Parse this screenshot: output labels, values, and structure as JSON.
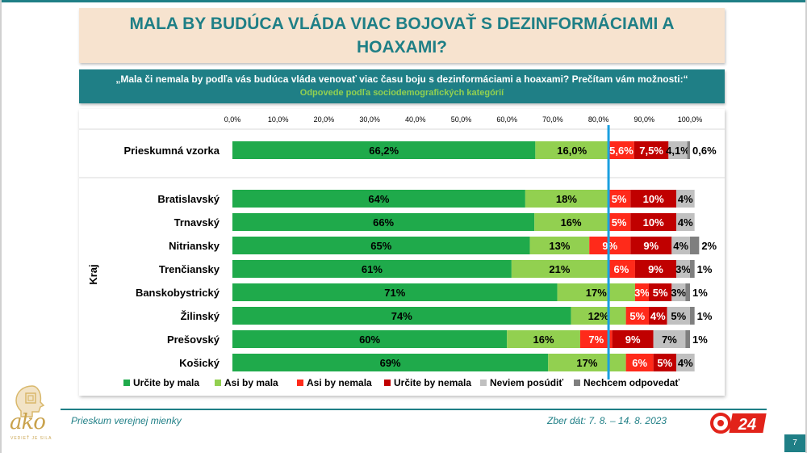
{
  "header": {
    "title": "MALA BY BUDÚCA VLÁDA VIAC BOJOVAŤ S DEZINFORMÁCIAMI A HOAXAMI?",
    "question": "„Mala či nemala by podľa vás budúca vláda venovať viac času boju s dezinformáciami a hoaxami? Prečítam vám možnosti:“",
    "subtitle": "Odpovede podľa sociodemografických kategórií"
  },
  "chart_data": {
    "type": "bar",
    "orientation": "horizontal",
    "stacked": true,
    "x_ticks": [
      "0,0%",
      "10,0%",
      "20,0%",
      "30,0%",
      "40,0%",
      "50,0%",
      "60,0%",
      "70,0%",
      "80,0%",
      "90,0%",
      "100,0%"
    ],
    "xlim": [
      0,
      100
    ],
    "reference_line": 82.2,
    "group_label": "Kraj",
    "categories": [
      "Prieskumná vzorka",
      "Bratislavský",
      "Trnavský",
      "Nitriansky",
      "Trenčiansky",
      "Banskobystrický",
      "Žilinský",
      "Prešovský",
      "Košický"
    ],
    "series": [
      {
        "name": "Určite by mala",
        "color": "#1faa4b",
        "values": [
          66.2,
          64,
          66,
          65,
          61,
          71,
          74,
          60,
          69
        ],
        "labels": [
          "66,2%",
          "64%",
          "66%",
          "65%",
          "61%",
          "71%",
          "74%",
          "60%",
          "69%"
        ]
      },
      {
        "name": "Asi by mala",
        "color": "#92d050",
        "values": [
          16.0,
          18,
          16,
          13,
          21,
          17,
          12,
          16,
          17
        ],
        "labels": [
          "16,0%",
          "18%",
          "16%",
          "13%",
          "21%",
          "17%",
          "12%",
          "16%",
          "17%"
        ]
      },
      {
        "name": "Asi by nemala",
        "color": "#ff2a1a",
        "values": [
          5.6,
          5,
          5,
          9,
          6,
          3,
          5,
          7,
          6
        ],
        "labels": [
          "5,6%",
          "5%",
          "5%",
          "9%",
          "6%",
          "3%",
          "5%",
          "7%",
          "6%"
        ]
      },
      {
        "name": "Určite by nemala",
        "color": "#c00000",
        "values": [
          7.5,
          10,
          10,
          9,
          9,
          5,
          4,
          9,
          5
        ],
        "labels": [
          "7,5%",
          "10%",
          "10%",
          "9%",
          "9%",
          "5%",
          "4%",
          "9%",
          "5%"
        ]
      },
      {
        "name": "Neviem posúdiť",
        "color": "#c0c0c0",
        "values": [
          4.1,
          4,
          4,
          4,
          3,
          3,
          5,
          7,
          4
        ],
        "labels": [
          "4,1%",
          "4%",
          "4%",
          "4%",
          "3%",
          "3%",
          "5%",
          "7%",
          "4%"
        ]
      },
      {
        "name": "Nechcem odpovedať",
        "color": "#7f7f7f",
        "values": [
          0.6,
          0,
          0,
          2,
          1,
          1,
          1,
          1,
          0
        ],
        "labels": [
          "0,6%",
          "",
          "",
          "2%",
          "1%",
          "1%",
          "1%",
          "1%",
          ""
        ]
      }
    ]
  },
  "footer": {
    "left": "Prieskum verejnej mienky",
    "right": "Zber dát: 7. 8. – 14. 8. 2023",
    "page": "7",
    "logo_text": "ako",
    "logo_sub": "VEDIEŤ JE SILA",
    "tv_logo": "24"
  }
}
